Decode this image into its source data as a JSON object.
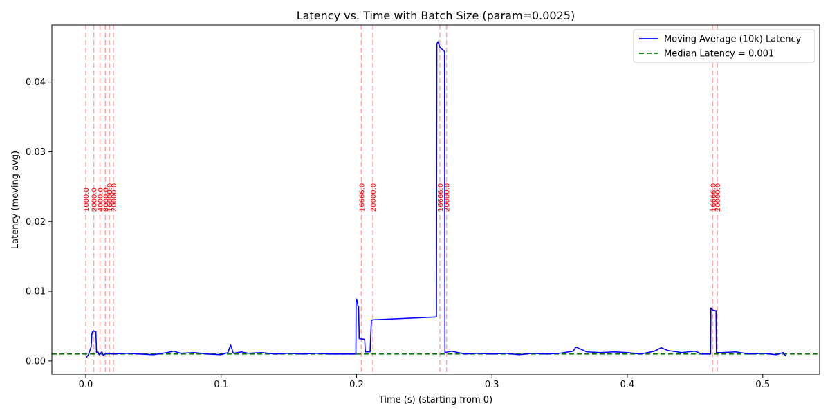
{
  "chart_data": {
    "type": "line",
    "title": "Latency vs. Time with Batch Size (param=0.0025)",
    "xlabel": "Time (s) (starting from 0)",
    "ylabel": "Latency (moving avg)",
    "xlim": [
      -0.025,
      0.542
    ],
    "ylim": [
      -0.0019,
      0.0482
    ],
    "xticks": [
      0.0,
      0.1,
      0.2,
      0.3,
      0.4,
      0.5
    ],
    "xtick_labels": [
      "0.0",
      "0.1",
      "0.2",
      "0.3",
      "0.4",
      "0.5"
    ],
    "yticks": [
      0.0,
      0.01,
      0.02,
      0.03,
      0.04
    ],
    "ytick_labels": [
      "0.00",
      "0.01",
      "0.02",
      "0.03",
      "0.04"
    ],
    "grid": false,
    "legend_position": "top-right",
    "series": [
      {
        "name": "Moving Average (10k) Latency",
        "color": "#0000ff",
        "style": "solid",
        "points": [
          [
            0.0005,
            0.0005
          ],
          [
            0.002,
            0.0009
          ],
          [
            0.004,
            0.002
          ],
          [
            0.0045,
            0.0038
          ],
          [
            0.005,
            0.0042
          ],
          [
            0.006,
            0.0043
          ],
          [
            0.0075,
            0.0042
          ],
          [
            0.008,
            0.0012
          ],
          [
            0.009,
            0.0013
          ],
          [
            0.01,
            0.0009
          ],
          [
            0.012,
            0.0013
          ],
          [
            0.013,
            0.0008
          ],
          [
            0.015,
            0.0011
          ],
          [
            0.02,
            0.001
          ],
          [
            0.03,
            0.0011
          ],
          [
            0.04,
            0.001
          ],
          [
            0.05,
            0.0009
          ],
          [
            0.06,
            0.0012
          ],
          [
            0.065,
            0.0014
          ],
          [
            0.07,
            0.0011
          ],
          [
            0.08,
            0.0012
          ],
          [
            0.09,
            0.001
          ],
          [
            0.1,
            0.0009
          ],
          [
            0.105,
            0.0012
          ],
          [
            0.107,
            0.0023
          ],
          [
            0.109,
            0.0011
          ],
          [
            0.115,
            0.0013
          ],
          [
            0.12,
            0.0011
          ],
          [
            0.13,
            0.0012
          ],
          [
            0.14,
            0.001
          ],
          [
            0.15,
            0.0011
          ],
          [
            0.16,
            0.001
          ],
          [
            0.17,
            0.0011
          ],
          [
            0.18,
            0.001
          ],
          [
            0.19,
            0.001
          ],
          [
            0.1995,
            0.001
          ],
          [
            0.1997,
            0.0089
          ],
          [
            0.2005,
            0.0086
          ],
          [
            0.201,
            0.0079
          ],
          [
            0.2015,
            0.0078
          ],
          [
            0.202,
            0.0032
          ],
          [
            0.206,
            0.0031
          ],
          [
            0.2065,
            0.0013
          ],
          [
            0.21,
            0.0013
          ],
          [
            0.2105,
            0.0038
          ],
          [
            0.211,
            0.0058
          ],
          [
            0.212,
            0.0059
          ],
          [
            0.259,
            0.0063
          ],
          [
            0.2593,
            0.0455
          ],
          [
            0.2602,
            0.0458
          ],
          [
            0.2615,
            0.045
          ],
          [
            0.265,
            0.0444
          ],
          [
            0.2653,
            0.0012
          ],
          [
            0.27,
            0.0014
          ],
          [
            0.28,
            0.001
          ],
          [
            0.29,
            0.0011
          ],
          [
            0.3,
            0.001
          ],
          [
            0.31,
            0.0011
          ],
          [
            0.32,
            0.0009
          ],
          [
            0.33,
            0.0011
          ],
          [
            0.34,
            0.001
          ],
          [
            0.35,
            0.0011
          ],
          [
            0.36,
            0.0014
          ],
          [
            0.362,
            0.002
          ],
          [
            0.37,
            0.0013
          ],
          [
            0.38,
            0.0012
          ],
          [
            0.39,
            0.0013
          ],
          [
            0.4,
            0.0012
          ],
          [
            0.41,
            0.001
          ],
          [
            0.42,
            0.0014
          ],
          [
            0.425,
            0.0019
          ],
          [
            0.43,
            0.0015
          ],
          [
            0.44,
            0.0012
          ],
          [
            0.45,
            0.0014
          ],
          [
            0.455,
            0.001
          ],
          [
            0.4615,
            0.001
          ],
          [
            0.4617,
            0.0076
          ],
          [
            0.463,
            0.0073
          ],
          [
            0.4655,
            0.0072
          ],
          [
            0.4658,
            0.0012
          ],
          [
            0.47,
            0.0012
          ],
          [
            0.48,
            0.0013
          ],
          [
            0.49,
            0.001
          ],
          [
            0.5,
            0.0011
          ],
          [
            0.51,
            0.0009
          ],
          [
            0.515,
            0.0012
          ],
          [
            0.517,
            0.0007
          ]
        ]
      }
    ],
    "reference_lines": [
      {
        "name": "Median Latency = 0.001",
        "orientation": "horizontal",
        "y": 0.001,
        "color": "#008000",
        "style": "dashed"
      }
    ],
    "batch_markers": {
      "color": "#ff0000",
      "items": [
        {
          "x": 0.0,
          "label": "1000.0"
        },
        {
          "x": 0.006,
          "label": "2000.0"
        },
        {
          "x": 0.0105,
          "label": "4000.0"
        },
        {
          "x": 0.0145,
          "label": "8000.0"
        },
        {
          "x": 0.0175,
          "label": "16000.0"
        },
        {
          "x": 0.0205,
          "label": "20000.0"
        },
        {
          "x": 0.2035,
          "label": "16666.0"
        },
        {
          "x": 0.212,
          "label": "20000.0"
        },
        {
          "x": 0.2615,
          "label": "16666.0"
        },
        {
          "x": 0.2665,
          "label": "20000.0"
        },
        {
          "x": 0.463,
          "label": "16666.0"
        },
        {
          "x": 0.4665,
          "label": "20000.0"
        }
      ]
    }
  }
}
